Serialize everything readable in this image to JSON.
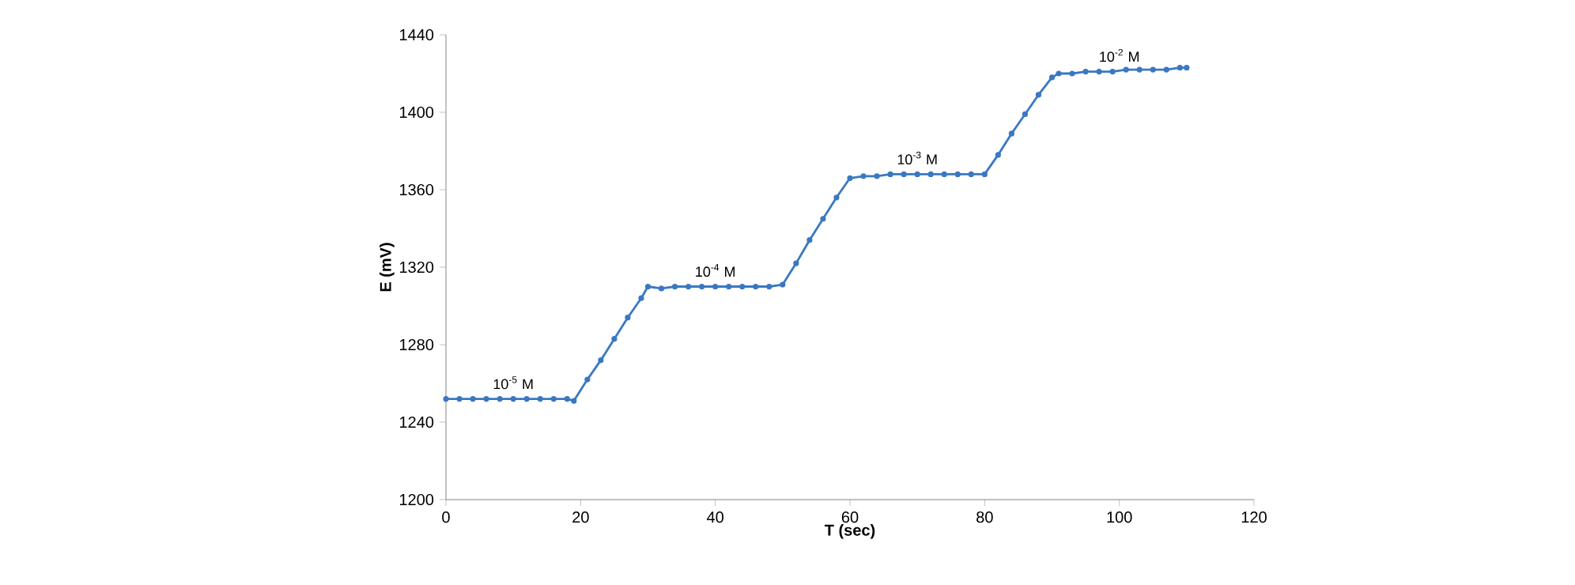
{
  "chart_data": {
    "type": "line",
    "xlabel": "T (sec)",
    "ylabel": "E (mV)",
    "xlim": [
      0,
      120
    ],
    "xticks": [
      0,
      20,
      40,
      60,
      80,
      100,
      120
    ],
    "ylim": [
      1200,
      1440
    ],
    "yticks": [
      1200,
      1240,
      1280,
      1320,
      1360,
      1400,
      1440
    ],
    "grid": false,
    "marker": "circle",
    "line_style": "solid",
    "series": [
      {
        "color": "#3a78c2",
        "x": [
          0,
          2,
          4,
          6,
          8,
          10,
          12,
          14,
          16,
          18,
          19,
          21,
          23,
          25,
          27,
          29,
          30,
          32,
          34,
          36,
          38,
          40,
          42,
          44,
          46,
          48,
          50,
          52,
          54,
          56,
          58,
          60,
          62,
          64,
          66,
          68,
          70,
          72,
          74,
          76,
          78,
          80,
          82,
          84,
          86,
          88,
          90,
          91,
          93,
          95,
          97,
          99,
          101,
          103,
          105,
          107,
          109,
          110
        ],
        "values": [
          1252,
          1252,
          1252,
          1252,
          1252,
          1252,
          1252,
          1252,
          1252,
          1252,
          1251,
          1262,
          1272,
          1283,
          1294,
          1304,
          1310,
          1309,
          1310,
          1310,
          1310,
          1310,
          1310,
          1310,
          1310,
          1310,
          1311,
          1322,
          1334,
          1345,
          1356,
          1366,
          1367,
          1367,
          1368,
          1368,
          1368,
          1368,
          1368,
          1368,
          1368,
          1368,
          1378,
          1389,
          1399,
          1409,
          1418,
          1420,
          1420,
          1421,
          1421,
          1421,
          1422,
          1422,
          1422,
          1422,
          1423,
          1423
        ]
      }
    ],
    "annotations": [
      {
        "text": "10$^{-5}$ M",
        "x": 10,
        "y": 1252
      },
      {
        "text": "10$^{-4}$ M",
        "x": 40,
        "y": 1310
      },
      {
        "text": "10$^{-3}$ M",
        "x": 70,
        "y": 1368
      },
      {
        "text": "10$^{-2}$ M",
        "x": 100,
        "y": 1421
      }
    ]
  }
}
